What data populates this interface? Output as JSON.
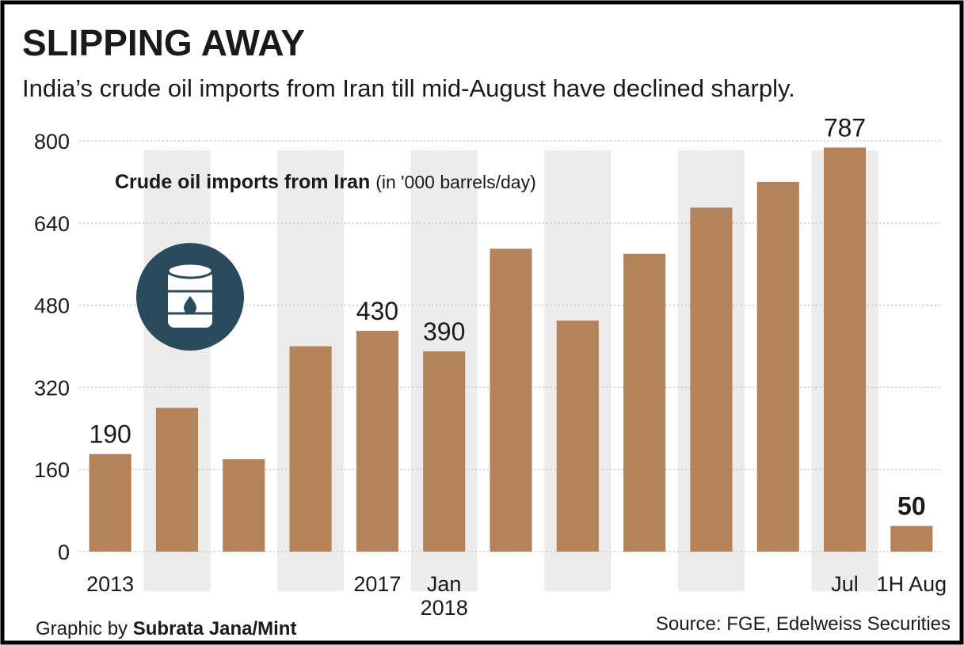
{
  "chart_data": {
    "type": "bar",
    "title": "SLIPPING AWAY",
    "subtitle": "India’s crude oil imports from Iran till mid-August have declined sharply.",
    "y_label": "Crude oil imports from Iran",
    "y_label_unit": "(in '000 barrels/day)",
    "credit_prefix": "Graphic by",
    "credit_name": "Subrata Jana/Mint",
    "source": "Source: FGE, Edelweiss Securities",
    "categories": [
      "2013",
      null,
      null,
      null,
      "2017",
      "Jan 2018",
      null,
      null,
      null,
      null,
      null,
      "Jul",
      "1H Aug"
    ],
    "values": [
      190,
      280,
      180,
      400,
      430,
      390,
      590,
      450,
      580,
      670,
      720,
      787,
      50
    ],
    "value_labels": [
      "190",
      null,
      null,
      null,
      "430",
      "390",
      null,
      null,
      null,
      null,
      null,
      "787",
      "50"
    ],
    "color": "#b5835a",
    "ylim": [
      0,
      800
    ],
    "yticks": [
      0,
      160,
      320,
      480,
      640,
      800
    ],
    "grid": true
  }
}
